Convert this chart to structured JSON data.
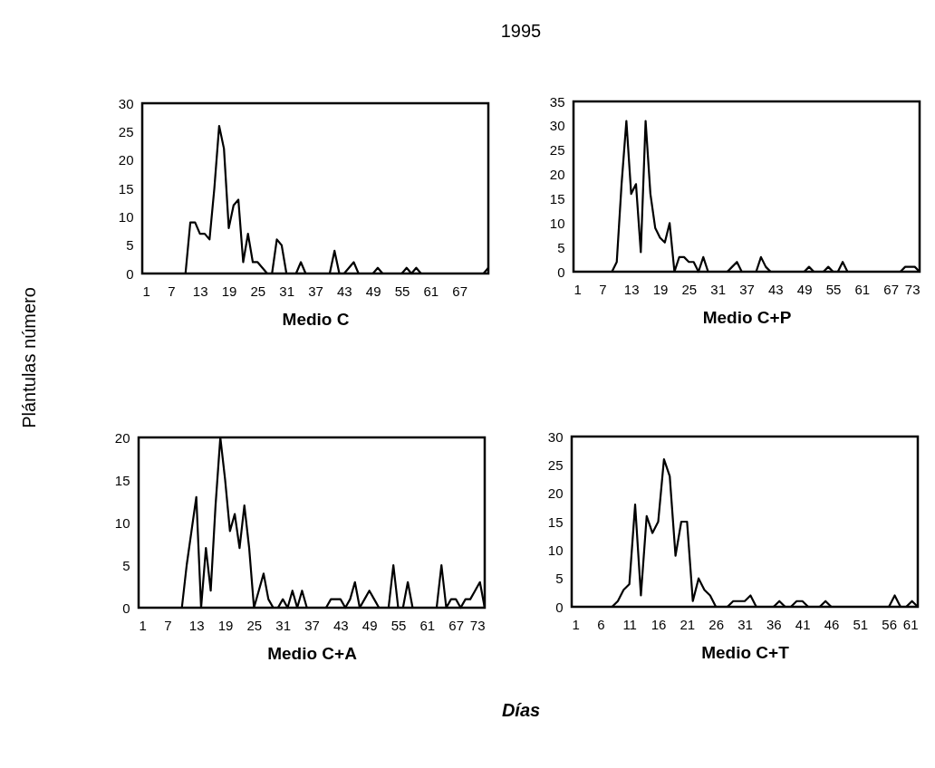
{
  "chart_data": [
    {
      "type": "line",
      "xlabel": "Medio C",
      "color": "#000000",
      "xlim": [
        1,
        73
      ],
      "xticks": [
        1,
        7,
        13,
        19,
        25,
        31,
        37,
        43,
        49,
        55,
        61,
        67
      ],
      "ylim": [
        0,
        30
      ],
      "yticks": [
        0,
        5,
        10,
        15,
        20,
        25,
        30
      ],
      "x": [
        1,
        2,
        3,
        4,
        5,
        6,
        7,
        8,
        9,
        10,
        11,
        12,
        13,
        14,
        15,
        16,
        17,
        18,
        19,
        20,
        21,
        22,
        23,
        24,
        25,
        26,
        27,
        28,
        29,
        30,
        31,
        32,
        33,
        34,
        35,
        36,
        37,
        38,
        39,
        40,
        41,
        42,
        43,
        44,
        45,
        46,
        47,
        48,
        49,
        50,
        51,
        52,
        53,
        54,
        55,
        56,
        57,
        58,
        59,
        60,
        61,
        62,
        63,
        64,
        65,
        66,
        67,
        68,
        69,
        70,
        71,
        72,
        73
      ],
      "values": [
        0,
        0,
        0,
        0,
        0,
        0,
        0,
        0,
        0,
        0,
        9,
        9,
        7,
        7,
        6,
        15,
        26,
        22,
        8,
        12,
        13,
        2,
        7,
        2,
        2,
        1,
        0,
        0,
        6,
        5,
        0,
        0,
        0,
        2,
        0,
        0,
        0,
        0,
        0,
        0,
        4,
        0,
        0,
        1,
        2,
        0,
        0,
        0,
        0,
        1,
        0,
        0,
        0,
        0,
        0,
        1,
        0,
        1,
        0,
        0,
        0,
        0,
        0,
        0,
        0,
        0,
        0,
        0,
        0,
        0,
        0,
        0,
        1
      ]
    },
    {
      "type": "line",
      "xlabel": "Medio C+P",
      "color": "#000000",
      "xlim": [
        1,
        73
      ],
      "xticks": [
        1,
        7,
        13,
        19,
        25,
        31,
        37,
        43,
        49,
        55,
        61,
        67,
        73
      ],
      "ylim": [
        0,
        35
      ],
      "yticks": [
        0,
        5,
        10,
        15,
        20,
        25,
        30,
        35
      ],
      "x": [
        1,
        2,
        3,
        4,
        5,
        6,
        7,
        8,
        9,
        10,
        11,
        12,
        13,
        14,
        15,
        16,
        17,
        18,
        19,
        20,
        21,
        22,
        23,
        24,
        25,
        26,
        27,
        28,
        29,
        30,
        31,
        32,
        33,
        34,
        35,
        36,
        37,
        38,
        39,
        40,
        41,
        42,
        43,
        44,
        45,
        46,
        47,
        48,
        49,
        50,
        51,
        52,
        53,
        54,
        55,
        56,
        57,
        58,
        59,
        60,
        61,
        62,
        63,
        64,
        65,
        66,
        67,
        68,
        69,
        70,
        71,
        72,
        73
      ],
      "values": [
        0,
        0,
        0,
        0,
        0,
        0,
        0,
        0,
        0,
        2,
        18,
        31,
        16,
        18,
        4,
        31,
        16,
        9,
        7,
        6,
        10,
        0,
        3,
        3,
        2,
        2,
        0,
        3,
        0,
        0,
        0,
        0,
        0,
        1,
        2,
        0,
        0,
        0,
        0,
        3,
        1,
        0,
        0,
        0,
        0,
        0,
        0,
        0,
        0,
        1,
        0,
        0,
        0,
        1,
        0,
        0,
        2,
        0,
        0,
        0,
        0,
        0,
        0,
        0,
        0,
        0,
        0,
        0,
        0,
        1,
        1,
        1,
        0
      ]
    },
    {
      "type": "line",
      "xlabel": "Medio C+A",
      "color": "#000000",
      "xlim": [
        1,
        73
      ],
      "xticks": [
        1,
        7,
        13,
        19,
        25,
        31,
        37,
        43,
        49,
        55,
        61,
        67,
        73
      ],
      "ylim": [
        0,
        20
      ],
      "yticks": [
        0,
        5,
        10,
        15,
        20
      ],
      "x": [
        1,
        2,
        3,
        4,
        5,
        6,
        7,
        8,
        9,
        10,
        11,
        12,
        13,
        14,
        15,
        16,
        17,
        18,
        19,
        20,
        21,
        22,
        23,
        24,
        25,
        26,
        27,
        28,
        29,
        30,
        31,
        32,
        33,
        34,
        35,
        36,
        37,
        38,
        39,
        40,
        41,
        42,
        43,
        44,
        45,
        46,
        47,
        48,
        49,
        50,
        51,
        52,
        53,
        54,
        55,
        56,
        57,
        58,
        59,
        60,
        61,
        62,
        63,
        64,
        65,
        66,
        67,
        68,
        69,
        70,
        71,
        72,
        73
      ],
      "values": [
        0,
        0,
        0,
        0,
        0,
        0,
        0,
        0,
        0,
        0,
        5,
        9,
        13,
        0,
        7,
        2,
        12,
        20,
        15,
        9,
        11,
        7,
        12,
        7,
        0,
        2,
        4,
        1,
        0,
        0,
        1,
        0,
        2,
        0,
        2,
        0,
        0,
        0,
        0,
        0,
        1,
        1,
        1,
        0,
        1,
        3,
        0,
        1,
        2,
        1,
        0,
        0,
        0,
        5,
        0,
        0,
        3,
        0,
        0,
        0,
        0,
        0,
        0,
        5,
        0,
        1,
        1,
        0,
        1,
        1,
        2,
        3,
        0
      ]
    },
    {
      "type": "line",
      "xlabel": "Medio C+T",
      "color": "#000000",
      "xlim": [
        1,
        61
      ],
      "xticks": [
        1,
        6,
        11,
        16,
        21,
        26,
        31,
        36,
        41,
        46,
        51,
        56,
        61
      ],
      "ylim": [
        0,
        30
      ],
      "yticks": [
        0,
        5,
        10,
        15,
        20,
        25,
        30
      ],
      "x": [
        1,
        2,
        3,
        4,
        5,
        6,
        7,
        8,
        9,
        10,
        11,
        12,
        13,
        14,
        15,
        16,
        17,
        18,
        19,
        20,
        21,
        22,
        23,
        24,
        25,
        26,
        27,
        28,
        29,
        30,
        31,
        32,
        33,
        34,
        35,
        36,
        37,
        38,
        39,
        40,
        41,
        42,
        43,
        44,
        45,
        46,
        47,
        48,
        49,
        50,
        51,
        52,
        53,
        54,
        55,
        56,
        57,
        58,
        59,
        60,
        61
      ],
      "values": [
        0,
        0,
        0,
        0,
        0,
        0,
        0,
        0,
        1,
        3,
        4,
        18,
        2,
        16,
        13,
        15,
        26,
        23,
        9,
        15,
        15,
        1,
        5,
        3,
        2,
        0,
        0,
        0,
        1,
        1,
        1,
        2,
        0,
        0,
        0,
        0,
        1,
        0,
        0,
        1,
        1,
        0,
        0,
        0,
        1,
        0,
        0,
        0,
        0,
        0,
        0,
        0,
        0,
        0,
        0,
        0,
        2,
        0,
        0,
        1,
        0
      ]
    },
    {
      "type": "other",
      "title": "1995",
      "ylabel": "Plántulas número",
      "xlabel": "Días"
    }
  ]
}
